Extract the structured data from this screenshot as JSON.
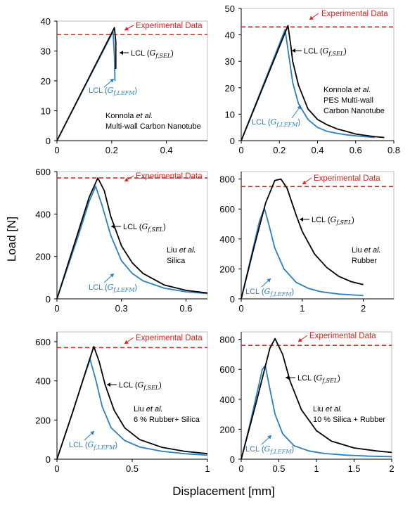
{
  "figure": {
    "ylabel": "Load [N]",
    "xlabel": "Displacement [mm]"
  },
  "colors": {
    "sel": "#000000",
    "lefm": "#2a7fc0",
    "experimental": "#e02020"
  },
  "chart_data": [
    {
      "type": "line",
      "panel": "top-left",
      "xlim": [
        0,
        0.55
      ],
      "ylim": [
        0,
        40
      ],
      "xticks": [
        0,
        0.2,
        0.4
      ],
      "yticks": [
        0,
        10,
        20,
        30,
        40
      ],
      "xtick_labels": [
        "0",
        "0.2",
        "0.4"
      ],
      "ytick_labels": [
        "0",
        "10",
        "20",
        "30",
        "40"
      ],
      "experimental_y": 35.5,
      "experimental_label": "Experimental Data",
      "annotations": [
        "Konnola et al.",
        "Multi-wall Carbon Nanotube"
      ],
      "series": [
        {
          "name": "LCL (Gf,SEL)",
          "label_main": "LCL (",
          "label_sym": "G",
          "label_sub": "f,SEL",
          "label_close": ")",
          "color": "#000000",
          "x": [
            0,
            0.21,
            0.215,
            0.215
          ],
          "y": [
            0,
            37.8,
            33,
            24
          ]
        },
        {
          "name": "LCL (Gf,LEFM)",
          "label_main": "LCL (",
          "label_sym": "G",
          "label_sub": "f,LEFM",
          "label_close": ")",
          "color": "#2a7fc0",
          "x": [
            0,
            0.205,
            0.21,
            0.212
          ],
          "y": [
            0,
            36.5,
            28,
            20
          ]
        }
      ]
    },
    {
      "type": "line",
      "panel": "top-right",
      "xlim": [
        0,
        0.8
      ],
      "ylim": [
        0,
        50
      ],
      "xticks": [
        0,
        0.2,
        0.4,
        0.6,
        0.8
      ],
      "yticks": [
        0,
        10,
        20,
        30,
        40,
        50
      ],
      "xtick_labels": [
        "0",
        "0.2",
        "0.4",
        "0.6",
        "0.8"
      ],
      "ytick_labels": [
        "0",
        "10",
        "20",
        "30",
        "40",
        "50"
      ],
      "experimental_y": 43,
      "experimental_label": "Experimental Data",
      "annotations": [
        "Konnola et al.",
        "PES Multi-wall",
        "Carbon Nanotube"
      ],
      "series": [
        {
          "name": "LCL (Gf,SEL)",
          "label_main": "LCL (",
          "label_sym": "G",
          "label_sub": "f,SEL",
          "label_close": ")",
          "color": "#000000",
          "x": [
            0,
            0.245,
            0.25,
            0.26,
            0.27,
            0.3,
            0.35,
            0.4,
            0.45,
            0.5,
            0.55,
            0.6,
            0.65,
            0.7,
            0.75
          ],
          "y": [
            0,
            43.5,
            41,
            36,
            30,
            21,
            12,
            8,
            6,
            4.5,
            3.5,
            2.5,
            2,
            1.5,
            1.2
          ]
        },
        {
          "name": "LCL (Gf,LEFM)",
          "label_main": "LCL (",
          "label_sym": "G",
          "label_sub": "f,LEFM",
          "label_close": ")",
          "color": "#2a7fc0",
          "x": [
            0,
            0.23,
            0.25,
            0.27,
            0.3,
            0.35,
            0.4,
            0.45,
            0.5,
            0.55,
            0.6,
            0.65,
            0.7
          ],
          "y": [
            0,
            42,
            32,
            22,
            14,
            8,
            5,
            3.5,
            2.8,
            2.2,
            1.8,
            1.5,
            1.2
          ]
        }
      ]
    },
    {
      "type": "line",
      "panel": "middle-left",
      "xlim": [
        0,
        0.7
      ],
      "ylim": [
        0,
        600
      ],
      "xticks": [
        0,
        0.3,
        0.6
      ],
      "yticks": [
        0,
        200,
        400,
        600
      ],
      "xtick_labels": [
        "0",
        "0.3",
        "0.6"
      ],
      "ytick_labels": [
        "0",
        "200",
        "400",
        "600"
      ],
      "experimental_y": 570,
      "experimental_label": "Experimental Data",
      "annotations": [
        "Liu et al.",
        "Silica"
      ],
      "series": [
        {
          "name": "LCL (Gf,SEL)",
          "label_main": "LCL (",
          "label_sym": "G",
          "label_sub": "f,SEL",
          "label_close": ")",
          "color": "#000000",
          "x": [
            0,
            0.05,
            0.1,
            0.15,
            0.19,
            0.22,
            0.25,
            0.3,
            0.35,
            0.4,
            0.5,
            0.6,
            0.7
          ],
          "y": [
            0,
            160,
            320,
            480,
            570,
            510,
            390,
            250,
            170,
            120,
            65,
            40,
            28
          ]
        },
        {
          "name": "LCL (Gf,LEFM)",
          "label_main": "LCL (",
          "label_sym": "G",
          "label_sub": "f,LEFM",
          "label_close": ")",
          "color": "#2a7fc0",
          "x": [
            0,
            0.05,
            0.1,
            0.15,
            0.18,
            0.21,
            0.25,
            0.3,
            0.35,
            0.4,
            0.5,
            0.6,
            0.7
          ],
          "y": [
            0,
            150,
            300,
            460,
            530,
            440,
            300,
            180,
            120,
            85,
            50,
            33,
            25
          ]
        }
      ]
    },
    {
      "type": "line",
      "panel": "middle-right",
      "xlim": [
        0,
        2.5
      ],
      "ylim": [
        0,
        850
      ],
      "xticks": [
        0,
        1,
        2
      ],
      "yticks": [
        0,
        200,
        400,
        600,
        800
      ],
      "xtick_labels": [
        "0",
        "1",
        "2"
      ],
      "ytick_labels": [
        "0",
        "200",
        "400",
        "600",
        "800"
      ],
      "experimental_y": 750,
      "experimental_label": "Experimental Data",
      "annotations": [
        "Liu et al.",
        "Rubber"
      ],
      "series": [
        {
          "name": "LCL (Gf,SEL)",
          "label_main": "LCL (",
          "label_sym": "G",
          "label_sub": "f,SEL",
          "label_close": ")",
          "color": "#000000",
          "x": [
            0,
            0.2,
            0.4,
            0.55,
            0.65,
            0.75,
            0.9,
            1.0,
            1.2,
            1.4,
            1.6,
            1.8,
            2.0
          ],
          "y": [
            0,
            330,
            640,
            790,
            800,
            740,
            560,
            450,
            300,
            210,
            150,
            115,
            95
          ]
        },
        {
          "name": "LCL (Gf,LEFM)",
          "label_main": "LCL (",
          "label_sym": "G",
          "label_sub": "f,LEFM",
          "label_close": ")",
          "color": "#2a7fc0",
          "x": [
            0,
            0.15,
            0.3,
            0.38,
            0.45,
            0.55,
            0.7,
            0.9,
            1.1,
            1.3,
            1.6,
            2.0
          ],
          "y": [
            0,
            260,
            520,
            605,
            500,
            340,
            200,
            110,
            70,
            48,
            32,
            22
          ]
        }
      ]
    },
    {
      "type": "line",
      "panel": "bottom-left",
      "xlim": [
        0,
        1.0
      ],
      "ylim": [
        0,
        650
      ],
      "xticks": [
        0,
        0.5,
        1
      ],
      "yticks": [
        0,
        200,
        400,
        600
      ],
      "xtick_labels": [
        "0",
        "0.5",
        "1"
      ],
      "ytick_labels": [
        "0",
        "200",
        "400",
        "600"
      ],
      "experimental_y": 570,
      "experimental_label": "Experimental Data",
      "annotations": [
        "Liu et al.",
        "6 % Rubber+ Silica"
      ],
      "series": [
        {
          "name": "LCL (Gf,SEL)",
          "label_main": "LCL (",
          "label_sym": "G",
          "label_sub": "f,SEL",
          "label_close": ")",
          "color": "#000000",
          "x": [
            0,
            0.1,
            0.2,
            0.245,
            0.28,
            0.32,
            0.38,
            0.45,
            0.55,
            0.7,
            0.85,
            1.0
          ],
          "y": [
            0,
            230,
            470,
            575,
            500,
            380,
            250,
            160,
            100,
            60,
            40,
            28
          ]
        },
        {
          "name": "LCL (Gf,LEFM)",
          "label_main": "LCL (",
          "label_sym": "G",
          "label_sub": "f,LEFM",
          "label_close": ")",
          "color": "#2a7fc0",
          "x": [
            0,
            0.1,
            0.18,
            0.22,
            0.26,
            0.3,
            0.36,
            0.45,
            0.55,
            0.7,
            0.85,
            1.0
          ],
          "y": [
            0,
            230,
            420,
            510,
            400,
            270,
            160,
            95,
            62,
            40,
            28,
            20
          ]
        }
      ]
    },
    {
      "type": "line",
      "panel": "bottom-right",
      "xlim": [
        0,
        2.0
      ],
      "ylim": [
        0,
        850
      ],
      "xticks": [
        0,
        0.5,
        1,
        1.5,
        2
      ],
      "yticks": [
        0,
        200,
        400,
        600,
        800
      ],
      "xtick_labels": [
        "0",
        "0.5",
        "1",
        "1.5",
        "2"
      ],
      "ytick_labels": [
        "0",
        "200",
        "400",
        "600",
        "800"
      ],
      "experimental_y": 760,
      "experimental_label": "Experimental Data",
      "annotations": [
        "Liu et al.",
        "10 % Silica + Rubber"
      ],
      "series": [
        {
          "name": "LCL (Gf,SEL)",
          "label_main": "LCL (",
          "label_sym": "G",
          "label_sub": "f,SEL",
          "label_close": ")",
          "color": "#000000",
          "x": [
            0,
            0.1,
            0.2,
            0.3,
            0.38,
            0.45,
            0.55,
            0.65,
            0.8,
            1.0,
            1.2,
            1.5,
            1.8,
            2.0
          ],
          "y": [
            0,
            190,
            380,
            580,
            740,
            805,
            700,
            520,
            330,
            190,
            120,
            75,
            55,
            45
          ]
        },
        {
          "name": "LCL (Gf,LEFM)",
          "label_main": "LCL (",
          "label_sym": "G",
          "label_sub": "f,LEFM",
          "label_close": ")",
          "color": "#2a7fc0",
          "x": [
            0,
            0.1,
            0.2,
            0.28,
            0.32,
            0.38,
            0.45,
            0.55,
            0.7,
            0.9,
            1.1,
            1.4,
            1.7,
            2.0
          ],
          "y": [
            0,
            200,
            420,
            600,
            625,
            470,
            300,
            170,
            90,
            55,
            38,
            27,
            20,
            17
          ]
        }
      ]
    }
  ]
}
